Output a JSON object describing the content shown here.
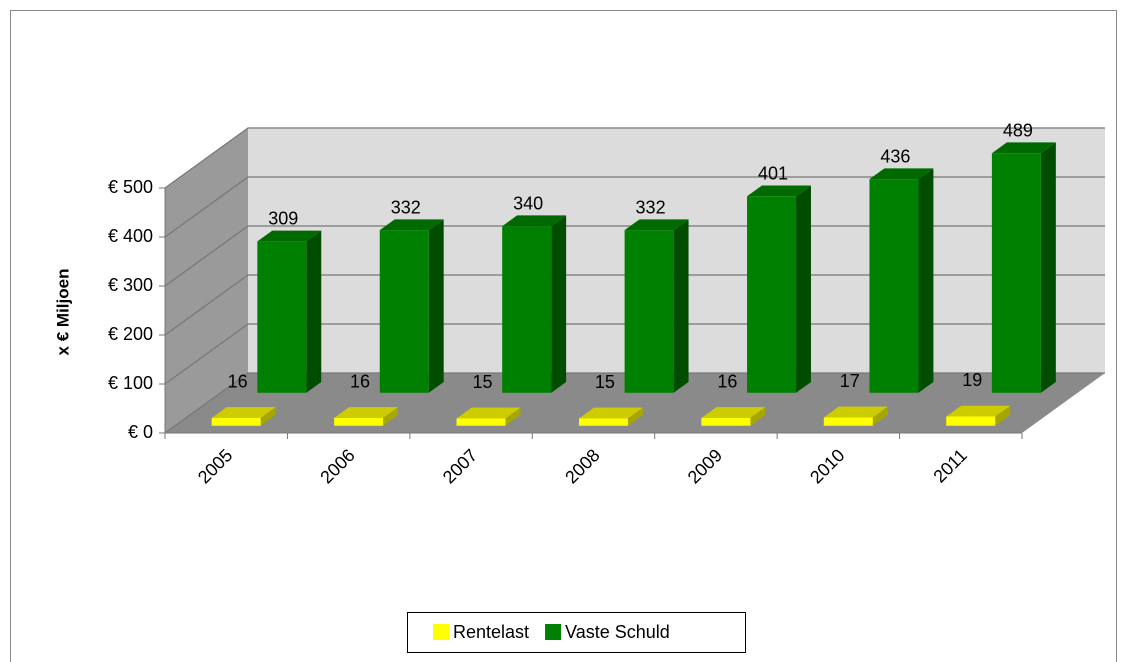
{
  "chart_data": {
    "type": "bar3d",
    "y_label": "x € Miljoen",
    "categories": [
      "2005",
      "2006",
      "2007",
      "2008",
      "2009",
      "2010",
      "2011"
    ],
    "series": [
      {
        "name": "Rentelast",
        "color": "#ffff00",
        "values": [
          16,
          16,
          15,
          15,
          16,
          17,
          19
        ]
      },
      {
        "name": "Vaste Schuld",
        "color": "#008000",
        "values": [
          309,
          332,
          340,
          332,
          401,
          436,
          489
        ]
      }
    ],
    "ylim": [
      0,
      500
    ],
    "yticks": [
      {
        "value": 0,
        "label": "€ 0"
      },
      {
        "value": 100,
        "label": "€ 100"
      },
      {
        "value": 200,
        "label": "€ 200"
      },
      {
        "value": 300,
        "label": "€ 300"
      },
      {
        "value": 400,
        "label": "€ 400"
      },
      {
        "value": 500,
        "label": "€ 500"
      }
    ],
    "grid": true,
    "legend": "bottom"
  }
}
